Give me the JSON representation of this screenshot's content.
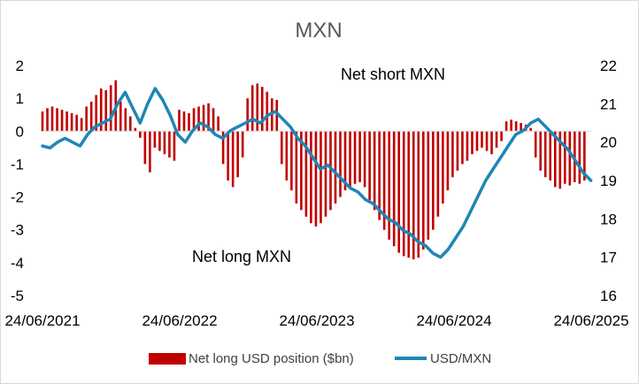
{
  "chart_data": {
    "type": "bar+line",
    "title": "MXN",
    "x_tick_labels": [
      "24/06/2021",
      "24/06/2022",
      "24/06/2023",
      "24/06/2024",
      "24/06/2025"
    ],
    "x_range": [
      "2021-06-24",
      "2025-06-24"
    ],
    "left_axis": {
      "ylim": [
        -5,
        2
      ],
      "ticks": [
        2,
        1,
        0,
        -1,
        -2,
        -3,
        -4,
        -5
      ]
    },
    "right_axis": {
      "ylim": [
        16,
        22
      ],
      "ticks": [
        22,
        21,
        20,
        19,
        18,
        17,
        16
      ]
    },
    "annotations": [
      "Net short MXN",
      "Net long MXN"
    ],
    "legend": {
      "position": "bottom"
    },
    "colors": {
      "bars": "#c00000",
      "line": "#1f86b5"
    },
    "series": [
      {
        "name": "Net long USD position ($bn)",
        "type": "bar",
        "axis": "left",
        "color": "#c00000",
        "points": [
          [
            "2021-06-24",
            0.6
          ],
          [
            "2021-07-07",
            0.7
          ],
          [
            "2021-07-20",
            0.75
          ],
          [
            "2021-08-02",
            0.7
          ],
          [
            "2021-08-15",
            0.65
          ],
          [
            "2021-08-28",
            0.6
          ],
          [
            "2021-09-10",
            0.55
          ],
          [
            "2021-09-23",
            0.5
          ],
          [
            "2021-10-06",
            0.4
          ],
          [
            "2021-10-19",
            0.75
          ],
          [
            "2021-11-01",
            0.9
          ],
          [
            "2021-11-14",
            1.1
          ],
          [
            "2021-11-27",
            1.3
          ],
          [
            "2021-12-10",
            1.25
          ],
          [
            "2021-12-23",
            1.4
          ],
          [
            "2022-01-05",
            1.55
          ],
          [
            "2022-01-18",
            0.9
          ],
          [
            "2022-01-31",
            0.7
          ],
          [
            "2022-02-13",
            0.45
          ],
          [
            "2022-02-26",
            0.1
          ],
          [
            "2022-03-11",
            -0.2
          ],
          [
            "2022-03-24",
            -1.0
          ],
          [
            "2022-04-06",
            -1.25
          ],
          [
            "2022-04-19",
            -0.5
          ],
          [
            "2022-05-02",
            -0.6
          ],
          [
            "2022-05-15",
            -0.7
          ],
          [
            "2022-05-28",
            -0.8
          ],
          [
            "2022-06-10",
            -0.9
          ],
          [
            "2022-06-23",
            0.65
          ],
          [
            "2022-07-06",
            0.6
          ],
          [
            "2022-07-19",
            0.55
          ],
          [
            "2022-08-01",
            0.7
          ],
          [
            "2022-08-14",
            0.75
          ],
          [
            "2022-08-27",
            0.8
          ],
          [
            "2022-09-09",
            0.85
          ],
          [
            "2022-09-22",
            0.7
          ],
          [
            "2022-10-05",
            0.45
          ],
          [
            "2022-10-18",
            -1.0
          ],
          [
            "2022-10-31",
            -1.5
          ],
          [
            "2022-11-13",
            -1.7
          ],
          [
            "2022-11-26",
            -1.4
          ],
          [
            "2022-12-09",
            -0.8
          ],
          [
            "2022-12-22",
            1.0
          ],
          [
            "2023-01-04",
            1.4
          ],
          [
            "2023-01-17",
            1.45
          ],
          [
            "2023-01-30",
            1.35
          ],
          [
            "2023-02-12",
            1.2
          ],
          [
            "2023-02-25",
            1.0
          ],
          [
            "2023-03-10",
            0.95
          ],
          [
            "2023-03-23",
            -1.0
          ],
          [
            "2023-04-05",
            -1.5
          ],
          [
            "2023-04-18",
            -1.8
          ],
          [
            "2023-05-01",
            -2.2
          ],
          [
            "2023-05-14",
            -2.4
          ],
          [
            "2023-05-27",
            -2.6
          ],
          [
            "2023-06-09",
            -2.8
          ],
          [
            "2023-06-22",
            -2.9
          ],
          [
            "2023-07-05",
            -2.8
          ],
          [
            "2023-07-18",
            -2.6
          ],
          [
            "2023-07-31",
            -2.4
          ],
          [
            "2023-08-13",
            -2.2
          ],
          [
            "2023-08-26",
            -2.0
          ],
          [
            "2023-09-08",
            -1.8
          ],
          [
            "2023-09-21",
            -1.7
          ],
          [
            "2023-10-04",
            -1.6
          ],
          [
            "2023-10-17",
            -1.55
          ],
          [
            "2023-10-30",
            -1.7
          ],
          [
            "2023-11-12",
            -2.1
          ],
          [
            "2023-11-25",
            -2.4
          ],
          [
            "2023-12-08",
            -2.7
          ],
          [
            "2023-12-21",
            -3.0
          ],
          [
            "2024-01-03",
            -3.3
          ],
          [
            "2024-01-16",
            -3.5
          ],
          [
            "2024-01-29",
            -3.7
          ],
          [
            "2024-02-11",
            -3.8
          ],
          [
            "2024-02-24",
            -3.85
          ],
          [
            "2024-03-08",
            -3.9
          ],
          [
            "2024-03-21",
            -3.85
          ],
          [
            "2024-04-03",
            -3.6
          ],
          [
            "2024-04-16",
            -3.3
          ],
          [
            "2024-04-29",
            -3.0
          ],
          [
            "2024-05-12",
            -2.6
          ],
          [
            "2024-05-25",
            -2.2
          ],
          [
            "2024-06-07",
            -1.8
          ],
          [
            "2024-06-20",
            -1.4
          ],
          [
            "2024-07-03",
            -1.2
          ],
          [
            "2024-07-16",
            -1.0
          ],
          [
            "2024-07-29",
            -0.9
          ],
          [
            "2024-08-11",
            -0.7
          ],
          [
            "2024-08-24",
            -0.6
          ],
          [
            "2024-09-06",
            -0.5
          ],
          [
            "2024-09-19",
            -0.6
          ],
          [
            "2024-10-02",
            -0.7
          ],
          [
            "2024-10-15",
            -0.5
          ],
          [
            "2024-10-28",
            -0.3
          ],
          [
            "2024-11-10",
            0.3
          ],
          [
            "2024-11-23",
            0.35
          ],
          [
            "2024-12-06",
            0.3
          ],
          [
            "2024-12-19",
            0.25
          ],
          [
            "2025-01-01",
            0.2
          ],
          [
            "2025-01-14",
            0.1
          ],
          [
            "2025-01-27",
            -0.8
          ],
          [
            "2025-02-09",
            -1.2
          ],
          [
            "2025-02-22",
            -1.4
          ],
          [
            "2025-03-07",
            -1.5
          ],
          [
            "2025-03-20",
            -1.7
          ],
          [
            "2025-04-02",
            -1.75
          ],
          [
            "2025-04-15",
            -1.6
          ],
          [
            "2025-04-28",
            -1.65
          ],
          [
            "2025-05-11",
            -1.55
          ],
          [
            "2025-05-24",
            -1.6
          ],
          [
            "2025-06-06",
            -1.5
          ]
        ]
      },
      {
        "name": "USD/MXN",
        "type": "line",
        "axis": "right",
        "color": "#1f86b5",
        "points": [
          [
            "2021-06-24",
            19.9
          ],
          [
            "2021-07-14",
            19.85
          ],
          [
            "2021-08-03",
            20.0
          ],
          [
            "2021-08-23",
            20.1
          ],
          [
            "2021-09-12",
            20.0
          ],
          [
            "2021-10-02",
            19.9
          ],
          [
            "2021-10-22",
            20.2
          ],
          [
            "2021-11-11",
            20.4
          ],
          [
            "2021-12-01",
            20.5
          ],
          [
            "2021-12-21",
            20.6
          ],
          [
            "2022-01-10",
            21.0
          ],
          [
            "2022-01-30",
            21.3
          ],
          [
            "2022-02-19",
            20.9
          ],
          [
            "2022-03-11",
            20.5
          ],
          [
            "2022-03-31",
            21.0
          ],
          [
            "2022-04-20",
            21.4
          ],
          [
            "2022-05-10",
            21.1
          ],
          [
            "2022-05-30",
            20.7
          ],
          [
            "2022-06-19",
            20.2
          ],
          [
            "2022-07-09",
            20.0
          ],
          [
            "2022-07-29",
            20.3
          ],
          [
            "2022-08-18",
            20.5
          ],
          [
            "2022-09-07",
            20.4
          ],
          [
            "2022-09-27",
            20.2
          ],
          [
            "2022-10-17",
            20.1
          ],
          [
            "2022-11-06",
            20.3
          ],
          [
            "2022-11-26",
            20.4
          ],
          [
            "2022-12-16",
            20.5
          ],
          [
            "2023-01-05",
            20.6
          ],
          [
            "2023-01-25",
            20.5
          ],
          [
            "2023-02-14",
            20.7
          ],
          [
            "2023-03-06",
            20.8
          ],
          [
            "2023-03-26",
            20.6
          ],
          [
            "2023-04-15",
            20.4
          ],
          [
            "2023-05-05",
            20.1
          ],
          [
            "2023-05-25",
            19.9
          ],
          [
            "2023-06-14",
            19.6
          ],
          [
            "2023-07-04",
            19.3
          ],
          [
            "2023-07-24",
            19.4
          ],
          [
            "2023-08-13",
            19.2
          ],
          [
            "2023-09-02",
            19.0
          ],
          [
            "2023-09-22",
            18.8
          ],
          [
            "2023-10-12",
            18.7
          ],
          [
            "2023-11-01",
            18.5
          ],
          [
            "2023-11-21",
            18.4
          ],
          [
            "2023-12-11",
            18.2
          ],
          [
            "2023-12-31",
            18.0
          ],
          [
            "2024-01-20",
            17.9
          ],
          [
            "2024-02-09",
            17.7
          ],
          [
            "2024-02-29",
            17.6
          ],
          [
            "2024-03-20",
            17.4
          ],
          [
            "2024-04-09",
            17.3
          ],
          [
            "2024-04-29",
            17.1
          ],
          [
            "2024-05-19",
            17.0
          ],
          [
            "2024-06-08",
            17.2
          ],
          [
            "2024-06-28",
            17.5
          ],
          [
            "2024-07-18",
            17.8
          ],
          [
            "2024-08-07",
            18.2
          ],
          [
            "2024-08-27",
            18.6
          ],
          [
            "2024-09-16",
            19.0
          ],
          [
            "2024-10-06",
            19.3
          ],
          [
            "2024-10-26",
            19.6
          ],
          [
            "2024-11-15",
            19.9
          ],
          [
            "2024-12-05",
            20.2
          ],
          [
            "2024-12-25",
            20.3
          ],
          [
            "2025-01-14",
            20.5
          ],
          [
            "2025-02-03",
            20.6
          ],
          [
            "2025-02-23",
            20.4
          ],
          [
            "2025-03-15",
            20.2
          ],
          [
            "2025-04-04",
            20.0
          ],
          [
            "2025-04-24",
            19.8
          ],
          [
            "2025-05-14",
            19.5
          ],
          [
            "2025-06-03",
            19.2
          ],
          [
            "2025-06-23",
            19.0
          ]
        ]
      }
    ]
  }
}
